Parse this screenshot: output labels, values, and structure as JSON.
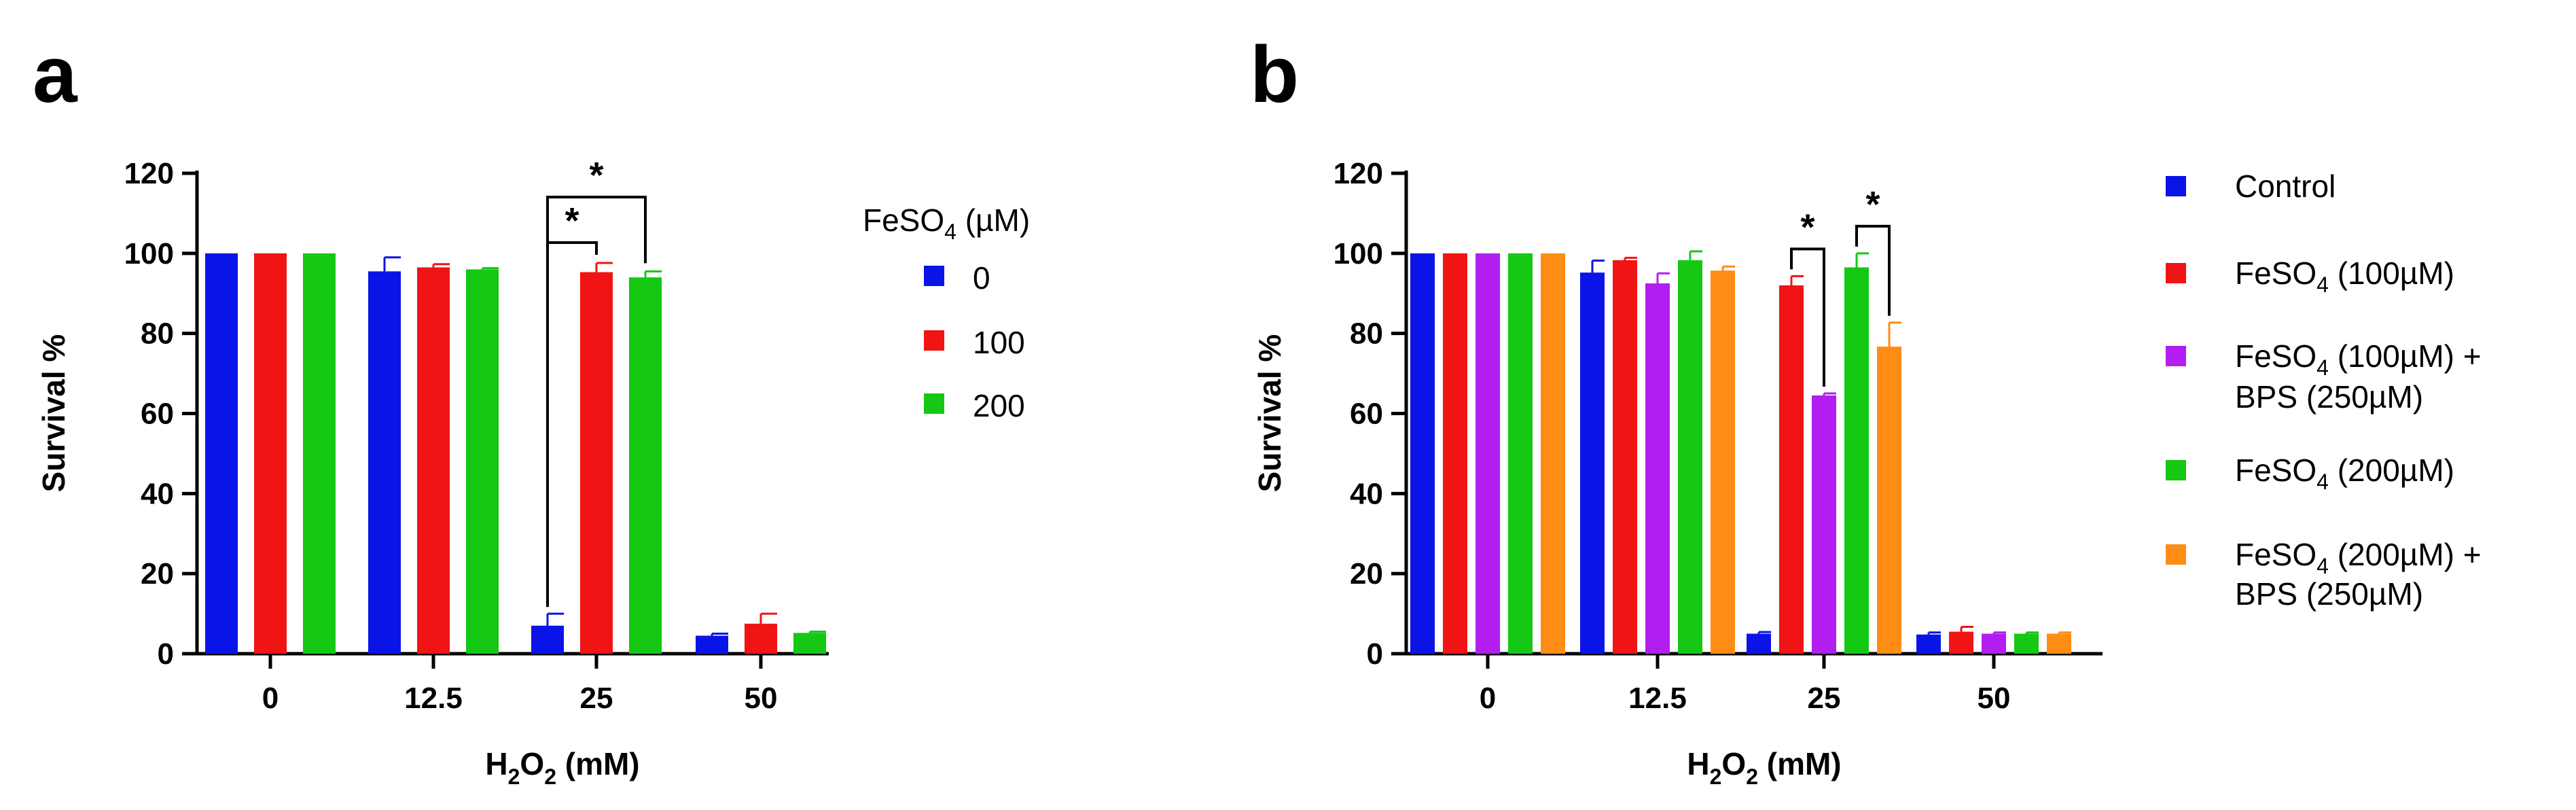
{
  "chart_data": [
    {
      "panel": "a",
      "type": "bar",
      "categories": [
        "0",
        "12.5",
        "25",
        "50"
      ],
      "xlabel": "H2O2 (mM)",
      "ylabel": "Survival %",
      "ylim": [
        0,
        120
      ],
      "yticks": [
        "0",
        "20",
        "40",
        "60",
        "80",
        "100",
        "120"
      ],
      "legend": {
        "title": "FeSO4 (µM)",
        "placement": "right"
      },
      "series": [
        {
          "name": "0",
          "color": "#0a14e6",
          "values": [
            100,
            95.5,
            7,
            4.5
          ],
          "errors": [
            0,
            3.5,
            3,
            0.5
          ]
        },
        {
          "name": "100",
          "color": "#f01414",
          "values": [
            100,
            96.5,
            95.3,
            7.5
          ],
          "errors": [
            0,
            0.8,
            2.3,
            2.5
          ]
        },
        {
          "name": "200",
          "color": "#14c814",
          "values": [
            100,
            96,
            94,
            5.2
          ],
          "errors": [
            0,
            0.3,
            1.5,
            0.3
          ]
        }
      ],
      "significance": [
        {
          "category": "25",
          "from_series": 0,
          "to_series": 1,
          "label": "*"
        },
        {
          "category": "25",
          "from_series": 0,
          "to_series": 2,
          "label": "*"
        }
      ]
    },
    {
      "panel": "b",
      "type": "bar",
      "categories": [
        "0",
        "12.5",
        "25",
        "50"
      ],
      "xlabel": "H2O2 (mM)",
      "ylabel": "Survival %",
      "ylim": [
        0,
        120
      ],
      "yticks": [
        "0",
        "20",
        "40",
        "60",
        "80",
        "100",
        "120"
      ],
      "legend": {
        "title": "",
        "placement": "right"
      },
      "series": [
        {
          "name": "Control",
          "color": "#0a14e6",
          "values": [
            100,
            95.2,
            5,
            4.8
          ],
          "errors": [
            0,
            3,
            0.4,
            0.5
          ]
        },
        {
          "name": "FeSO4 (100µM)",
          "color": "#f01414",
          "values": [
            100,
            98.3,
            92,
            5.5
          ],
          "errors": [
            0,
            0.6,
            2.3,
            1.2
          ]
        },
        {
          "name": "FeSO4 (100µM) + BPS (250µM)",
          "color": "#b21ef0",
          "values": [
            100,
            92.5,
            64.5,
            5
          ],
          "errors": [
            0,
            2.5,
            0.5,
            0.3
          ]
        },
        {
          "name": "FeSO4 (200µM)",
          "color": "#14c814",
          "values": [
            100,
            98.3,
            96.5,
            5
          ],
          "errors": [
            0,
            2.2,
            3.5,
            0.3
          ]
        },
        {
          "name": "FeSO4 (200µM) + BPS  (250µM)",
          "color": "#ff8c14",
          "values": [
            100,
            95.7,
            76.7,
            5
          ],
          "errors": [
            0,
            1,
            6,
            0.3
          ]
        }
      ],
      "significance": [
        {
          "category": "25",
          "from_series": 1,
          "to_series": 2,
          "label": "*"
        },
        {
          "category": "25",
          "from_series": 3,
          "to_series": 4,
          "label": "*"
        }
      ]
    }
  ],
  "panels": {
    "a": {
      "letter": "a",
      "ylabel": "Survival %",
      "xlabel": {
        "main": "H",
        "sub1": "2",
        "mid": "O",
        "sub2": "2",
        "unit": " (mM)"
      },
      "legend_title": {
        "main": "FeSO",
        "sub": "4",
        "unit": " (µM)"
      },
      "legend_items": [
        {
          "text": "0"
        },
        {
          "text": "100"
        },
        {
          "text": "200"
        }
      ]
    },
    "b": {
      "letter": "b",
      "ylabel": "Survival %",
      "xlabel": {
        "main": "H",
        "sub1": "2",
        "mid": "O",
        "sub2": "2",
        "unit": " (mM)"
      },
      "legend_items": [
        {
          "lines": [
            {
              "main": "Control",
              "sub": "",
              "rest": ""
            }
          ]
        },
        {
          "lines": [
            {
              "main": "FeSO",
              "sub": "4",
              "rest": " (100µM)"
            }
          ]
        },
        {
          "lines": [
            {
              "main": "FeSO",
              "sub": "4",
              "rest": " (100µM) +"
            },
            {
              "main": "BPS (250µM)",
              "sub": "",
              "rest": ""
            }
          ]
        },
        {
          "lines": [
            {
              "main": "FeSO",
              "sub": "4",
              "rest": " (200µM)"
            }
          ]
        },
        {
          "lines": [
            {
              "main": "FeSO",
              "sub": "4",
              "rest": " (200µM) +"
            },
            {
              "main": "BPS  (250µM)",
              "sub": "",
              "rest": ""
            }
          ]
        }
      ]
    }
  }
}
